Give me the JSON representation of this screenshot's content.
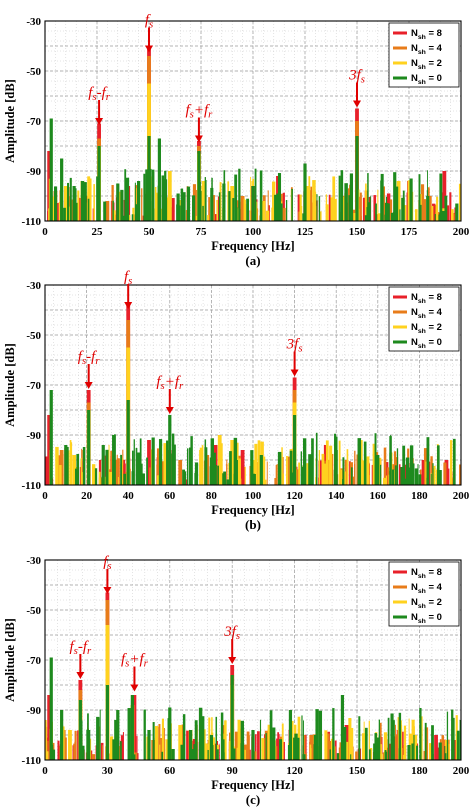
{
  "chart_data": [
    {
      "type": "bar",
      "caption": "(a)",
      "xlabel": "Frequency [Hz]",
      "ylabel": "Amplitude [dB]",
      "xlim": [
        0,
        200
      ],
      "ylim": [
        -110,
        -30
      ],
      "xticks": [
        0,
        25,
        50,
        75,
        100,
        125,
        150,
        175,
        200
      ],
      "yticks": [
        -30,
        -50,
        -70,
        -90,
        -110
      ],
      "grid": true,
      "legend_position": "top-right",
      "legend_entries": [
        "N_sh = 8",
        "N_sh = 4",
        "N_sh = 2",
        "N_sh = 0"
      ],
      "annotations": [
        {
          "text": "f_s",
          "x": 50,
          "y": -43
        },
        {
          "text": "f_s-f_r",
          "x": 26,
          "y": -72
        },
        {
          "text": "f_s+f_r",
          "x": 74,
          "y": -79
        },
        {
          "text": "3f_s",
          "x": 150,
          "y": -65
        }
      ],
      "series": [
        {
          "name": "N_sh = 8",
          "peaks": [
            [
              2,
              -82
            ],
            [
              10,
              -102
            ],
            [
              20,
              -100
            ],
            [
              26,
              -71
            ],
            [
              40,
              -96
            ],
            [
              50,
              -40
            ],
            [
              74,
              -78
            ],
            [
              100,
              -96
            ],
            [
              112,
              -92
            ],
            [
              150,
              -65
            ],
            [
              175,
              -94
            ],
            [
              192,
              -90
            ]
          ]
        },
        {
          "name": "N_sh = 4",
          "peaks": [
            [
              5,
              -98
            ],
            [
              26,
              -77
            ],
            [
              30,
              -102
            ],
            [
              50,
              -44
            ],
            [
              60,
              -100
            ],
            [
              74,
              -80
            ],
            [
              95,
              -100
            ],
            [
              150,
              -70
            ],
            [
              185,
              -100
            ]
          ]
        },
        {
          "name": "N_sh = 2",
          "peaks": [
            [
              10,
              -96
            ],
            [
              18,
              -94
            ],
            [
              26,
              -80
            ],
            [
              50,
              -55
            ],
            [
              60,
              -90
            ],
            [
              74,
              -83
            ],
            [
              90,
              -96
            ],
            [
              105,
              -102
            ],
            [
              126,
              -96
            ],
            [
              170,
              -94
            ]
          ]
        },
        {
          "name": "N_sh = 0",
          "peaks": [
            [
              3,
              -69
            ],
            [
              8,
              -85
            ],
            [
              14,
              -96
            ],
            [
              18,
              -94
            ],
            [
              26,
              -80
            ],
            [
              35,
              -95
            ],
            [
              45,
              -94
            ],
            [
              50,
              -76
            ],
            [
              55,
              -77
            ],
            [
              64,
              -99
            ],
            [
              74,
              -82
            ],
            [
              86,
              -95
            ],
            [
              100,
              -96
            ],
            [
              112,
              -99
            ],
            [
              125,
              -87
            ],
            [
              150,
              -76
            ],
            [
              165,
              -103
            ],
            [
              176,
              -93
            ],
            [
              184,
              -100
            ],
            [
              198,
              -103
            ]
          ]
        }
      ]
    },
    {
      "type": "bar",
      "caption": "(b)",
      "xlabel": "Frequency [Hz]",
      "ylabel": "Amplitude [dB]",
      "xlim": [
        0,
        200
      ],
      "ylim": [
        -110,
        -30
      ],
      "xticks": [
        0,
        20,
        40,
        60,
        80,
        100,
        120,
        140,
        160,
        180,
        200
      ],
      "yticks": [
        -30,
        -50,
        -70,
        -90,
        -110
      ],
      "grid": true,
      "legend_position": "top-right",
      "legend_entries": [
        "N_sh = 8",
        "N_sh = 4",
        "N_sh = 2",
        "N_sh = 0"
      ],
      "annotations": [
        {
          "text": "f_s",
          "x": 40,
          "y": -40
        },
        {
          "text": "f_s-f_r",
          "x": 21,
          "y": -72
        },
        {
          "text": "f_s+f_r",
          "x": 60,
          "y": -82
        },
        {
          "text": "3f_s",
          "x": 120,
          "y": -67
        }
      ],
      "series": [
        {
          "name": "N_sh = 8",
          "peaks": [
            [
              2,
              -82
            ],
            [
              21,
              -72
            ],
            [
              40,
              -38
            ],
            [
              50,
              -92
            ],
            [
              60,
              -96
            ],
            [
              82,
              -94
            ],
            [
              95,
              -96
            ],
            [
              120,
              -67
            ],
            [
              135,
              -94
            ],
            [
              158,
              -102
            ],
            [
              182,
              -100
            ],
            [
              193,
              -100
            ]
          ]
        },
        {
          "name": "N_sh = 4",
          "peaks": [
            [
              8,
              -96
            ],
            [
              21,
              -77
            ],
            [
              40,
              -44
            ],
            [
              65,
              -100
            ],
            [
              78,
              -98
            ],
            [
              120,
              -72
            ],
            [
              145,
              -100
            ]
          ]
        },
        {
          "name": "N_sh = 2",
          "peaks": [
            [
              14,
              -98
            ],
            [
              21,
              -80
            ],
            [
              40,
              -55
            ],
            [
              75,
              -96
            ],
            [
              84,
              -90
            ],
            [
              90,
              -92
            ],
            [
              100,
              -100
            ],
            [
              120,
              -77
            ],
            [
              168,
              -104
            ]
          ]
        },
        {
          "name": "N_sh = 0",
          "peaks": [
            [
              3,
              -72
            ],
            [
              10,
              -94
            ],
            [
              21,
              -80
            ],
            [
              28,
              -94
            ],
            [
              33,
              -90
            ],
            [
              40,
              -76
            ],
            [
              45,
              -97
            ],
            [
              52,
              -91
            ],
            [
              60,
              -82
            ],
            [
              70,
              -95
            ],
            [
              80,
              -99
            ],
            [
              92,
              -100
            ],
            [
              104,
              -98
            ],
            [
              120,
              -82
            ],
            [
              128,
              -103
            ],
            [
              140,
              -96
            ],
            [
              160,
              -98
            ],
            [
              175,
              -103
            ],
            [
              190,
              -104
            ]
          ]
        }
      ]
    },
    {
      "type": "bar",
      "caption": "(c)",
      "xlabel": "Frequency [Hz]",
      "ylabel": "Amplitude [dB]",
      "xlim": [
        0,
        200
      ],
      "ylim": [
        -110,
        -30
      ],
      "xticks": [
        0,
        30,
        60,
        90,
        120,
        150,
        180,
        200
      ],
      "yticks": [
        -30,
        -50,
        -70,
        -90,
        -110
      ],
      "grid": true,
      "legend_position": "top-right",
      "legend_entries": [
        "N_sh = 8",
        "N_sh = 4",
        "N_sh = 2",
        "N_sh = 0"
      ],
      "annotations": [
        {
          "text": "f_s",
          "x": 30,
          "y": -44
        },
        {
          "text": "f_s-f_r",
          "x": 17,
          "y": -78
        },
        {
          "text": "f_s+f_r",
          "x": 43,
          "y": -83
        },
        {
          "text": "3f_s",
          "x": 90,
          "y": -72
        }
      ],
      "series": [
        {
          "name": "N_sh = 8",
          "peaks": [
            [
              2,
              -84
            ],
            [
              17,
              -78
            ],
            [
              30,
              -43
            ],
            [
              43,
              -84
            ],
            [
              60,
              -98
            ],
            [
              90,
              -72
            ],
            [
              108,
              -100
            ],
            [
              118,
              -98
            ],
            [
              145,
              -96
            ],
            [
              170,
              -98
            ],
            [
              188,
              -100
            ]
          ]
        },
        {
          "name": "N_sh = 4",
          "peaks": [
            [
              9,
              -98
            ],
            [
              17,
              -82
            ],
            [
              30,
              -46
            ],
            [
              52,
              -102
            ],
            [
              90,
              -76
            ],
            [
              128,
              -100
            ],
            [
              160,
              -102
            ]
          ]
        },
        {
          "name": "N_sh = 2",
          "peaks": [
            [
              12,
              -98
            ],
            [
              17,
              -86
            ],
            [
              30,
              -56
            ],
            [
              42,
              -88
            ],
            [
              65,
              -96
            ],
            [
              70,
              -98
            ],
            [
              90,
              -80
            ],
            [
              130,
              -100
            ],
            [
              178,
              -100
            ],
            [
              193,
              -102
            ]
          ]
        },
        {
          "name": "N_sh = 0",
          "peaks": [
            [
              3,
              -69
            ],
            [
              8,
              -90
            ],
            [
              17,
              -86
            ],
            [
              21,
              -98
            ],
            [
              30,
              -80
            ],
            [
              35,
              -90
            ],
            [
              42,
              -84
            ],
            [
              50,
              -98
            ],
            [
              60,
              -89
            ],
            [
              70,
              -98
            ],
            [
              80,
              -100
            ],
            [
              90,
              -76
            ],
            [
              100,
              -98
            ],
            [
              110,
              -97
            ],
            [
              118,
              -90
            ],
            [
              130,
              -100
            ],
            [
              143,
              -84
            ],
            [
              160,
              -101
            ],
            [
              175,
              -104
            ],
            [
              190,
              -103
            ]
          ]
        }
      ]
    }
  ],
  "legend_colors": [
    "#e8202a",
    "#e87c1a",
    "#ffd21f",
    "#1e8a1e"
  ],
  "annotation_color": "#e00000"
}
